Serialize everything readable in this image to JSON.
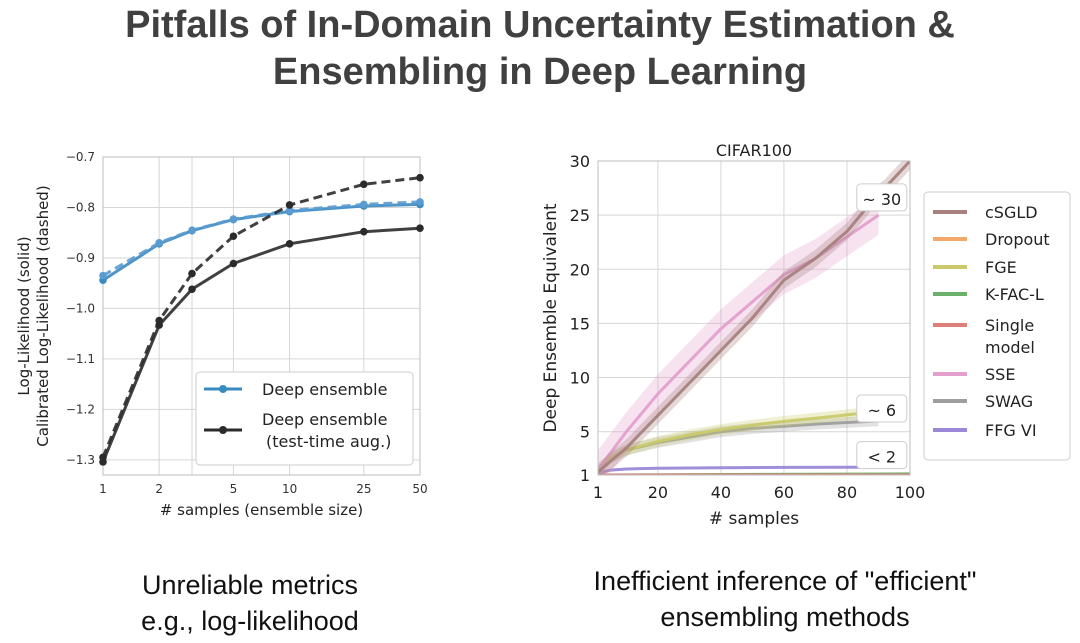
{
  "slide": {
    "title_line1": "Pitfalls of In-Domain Uncertainty Estimation &",
    "title_line2": "Ensembling in Deep Learning",
    "left_caption_line1": "Unreliable metrics",
    "left_caption_line2": "e.g., log-likelihood",
    "right_caption_line1": "Inefficient inference of \"efficient\"",
    "right_caption_line2": "ensembling methods"
  },
  "chart_data": [
    {
      "type": "line",
      "title": "",
      "xlabel": "# samples (ensemble size)",
      "ylabel_line1": "Log-Likelihood (solid)",
      "ylabel_line2": "Calibrated Log-Likelihood (dashed)",
      "x_scale": "log",
      "x_ticks": [
        1,
        2,
        5,
        10,
        25,
        50
      ],
      "x_ticks_extra": [
        3
      ],
      "ylim": [
        -1.33,
        -0.7
      ],
      "y_ticks": [
        -0.7,
        -0.8,
        -0.9,
        -1.0,
        -1.1,
        -1.2,
        -1.3
      ],
      "grid": true,
      "legend_position": "lower-right",
      "legend": [
        {
          "label": "Deep ensemble",
          "color": "#3a8ac2"
        },
        {
          "label": "Deep ensemble",
          "label2": "(test-time aug.)",
          "color": "#2b2b2b"
        }
      ],
      "series": [
        {
          "name": "Deep ensemble",
          "style": "solid",
          "color": "#3a8ac2",
          "x": [
            1,
            2,
            3,
            5,
            10,
            25,
            50
          ],
          "y": [
            -0.944,
            -0.872,
            -0.846,
            -0.824,
            -0.808,
            -0.797,
            -0.794
          ]
        },
        {
          "name": "Deep ensemble",
          "style": "dashed",
          "color": "#5b9bd0",
          "x": [
            1,
            2,
            3,
            5,
            10,
            25,
            50
          ],
          "y": [
            -0.935,
            -0.87,
            -0.845,
            -0.823,
            -0.806,
            -0.794,
            -0.789
          ]
        },
        {
          "name": "Deep ensemble (test-time aug.)",
          "style": "solid",
          "color": "#2b2b2b",
          "x": [
            1,
            2,
            3,
            5,
            10,
            25,
            50
          ],
          "y": [
            -1.304,
            -1.033,
            -0.962,
            -0.911,
            -0.872,
            -0.848,
            -0.841
          ]
        },
        {
          "name": "Deep ensemble (test-time aug.)",
          "style": "dashed",
          "color": "#2b2b2b",
          "x": [
            1,
            2,
            3,
            5,
            10,
            25,
            50
          ],
          "y": [
            -1.295,
            -1.024,
            -0.931,
            -0.857,
            -0.795,
            -0.754,
            -0.741
          ]
        }
      ]
    },
    {
      "type": "line",
      "title": "CIFAR100",
      "xlabel": "# samples",
      "ylabel": "Deep Ensemble Equivalent",
      "xlim": [
        1,
        100
      ],
      "x_ticks": [
        1,
        20,
        40,
        60,
        80,
        100
      ],
      "ylim": [
        1,
        30
      ],
      "y_ticks": [
        1,
        5,
        10,
        15,
        20,
        25,
        30
      ],
      "grid": true,
      "legend_position": "outside-right",
      "annotations": [
        {
          "text": "~ 30",
          "x": 92,
          "y": 26.5
        },
        {
          "text": "~ 6",
          "x": 92,
          "y": 7
        },
        {
          "text": "< 2",
          "x": 92,
          "y": 2.7
        }
      ],
      "series": [
        {
          "name": "cSGLD",
          "color": "#a6817d",
          "band": 0.8,
          "x": [
            1,
            10,
            20,
            30,
            40,
            50,
            60,
            70,
            80,
            90,
            92,
            100
          ],
          "y": [
            1.3,
            3.5,
            6.5,
            9.5,
            12.5,
            15.5,
            19.0,
            21.0,
            23.5,
            27.0,
            27.5,
            30.0
          ]
        },
        {
          "name": "Dropout",
          "color": "#f2a96a",
          "band": 0.1,
          "x": [
            1,
            100
          ],
          "y": [
            1.0,
            1.05
          ]
        },
        {
          "name": "FGE",
          "color": "#c9c96a",
          "band": 0.5,
          "x": [
            1,
            5,
            10,
            20,
            30,
            40,
            50,
            60,
            70,
            80,
            90
          ],
          "y": [
            1.3,
            2.6,
            3.3,
            4.1,
            4.7,
            5.2,
            5.6,
            5.95,
            6.25,
            6.55,
            6.9
          ]
        },
        {
          "name": "K-FAC-L",
          "color": "#6bb06b",
          "band": 0.1,
          "x": [
            1,
            100
          ],
          "y": [
            1.0,
            1.1
          ]
        },
        {
          "name": "Single model",
          "color": "#de7f77",
          "band": 0.05,
          "x": [
            1,
            100
          ],
          "y": [
            1.0,
            1.0
          ]
        },
        {
          "name": "SSE",
          "color": "#e3a0cc",
          "band": 1.8,
          "x": [
            1,
            10,
            20,
            30,
            40,
            50,
            60,
            70,
            80,
            90
          ],
          "y": [
            1.5,
            5.0,
            8.5,
            11.5,
            14.5,
            17.0,
            19.5,
            21.0,
            23.0,
            25.0
          ]
        },
        {
          "name": "SWAG",
          "color": "#9e9e9e",
          "band": 0.5,
          "x": [
            1,
            5,
            10,
            20,
            30,
            40,
            50,
            60,
            70,
            80,
            90
          ],
          "y": [
            1.3,
            2.6,
            3.3,
            4.0,
            4.5,
            5.0,
            5.3,
            5.5,
            5.7,
            5.85,
            6.0
          ]
        },
        {
          "name": "FFG VI",
          "color": "#9b88d6",
          "band": 0.1,
          "x": [
            1,
            5,
            10,
            20,
            40,
            60,
            80,
            90
          ],
          "y": [
            1.2,
            1.45,
            1.55,
            1.62,
            1.67,
            1.7,
            1.72,
            1.73
          ]
        }
      ],
      "legend": [
        {
          "label": "cSGLD",
          "color": "#a6817d"
        },
        {
          "label": "Dropout",
          "color": "#f2a96a"
        },
        {
          "label": "FGE",
          "color": "#c9c96a"
        },
        {
          "label": "K-FAC-L",
          "color": "#6bb06b"
        },
        {
          "label": "Single",
          "label2": "model",
          "color": "#de7f77"
        },
        {
          "label": "SSE",
          "color": "#e3a0cc"
        },
        {
          "label": "SWAG",
          "color": "#9e9e9e"
        },
        {
          "label": "FFG VI",
          "color": "#9b88d6"
        }
      ]
    }
  ]
}
